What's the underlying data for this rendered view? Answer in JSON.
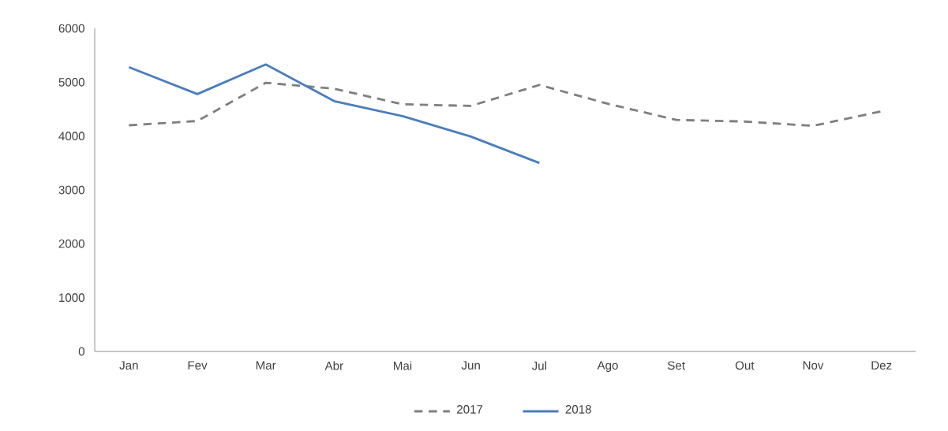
{
  "chart_data": {
    "type": "line",
    "categories": [
      "Jan",
      "Fev",
      "Mar",
      "Abr",
      "Mai",
      "Jun",
      "Jul",
      "Ago",
      "Set",
      "Out",
      "Nov",
      "Dez"
    ],
    "series": [
      {
        "name": "2017",
        "color": "#7f7f7f",
        "line_style": "dashed",
        "values": [
          4200,
          4280,
          4990,
          4880,
          4590,
          4560,
          4950,
          4600,
          4300,
          4270,
          4190,
          4460
        ]
      },
      {
        "name": "2018",
        "color": "#4a7ebb",
        "line_style": "solid",
        "values": [
          5280,
          4780,
          5330,
          4650,
          4370,
          3990,
          3500,
          null,
          null,
          null,
          null,
          null
        ]
      }
    ],
    "ylim": [
      0,
      6000
    ],
    "yticks": [
      0,
      1000,
      2000,
      3000,
      4000,
      5000,
      6000
    ],
    "grid": false,
    "legend": "bottom",
    "marker": "none"
  }
}
